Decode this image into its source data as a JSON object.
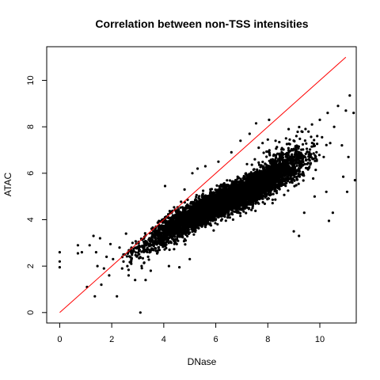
{
  "chart_data": {
    "type": "scatter",
    "title": "Correlation between non-TSS intensities",
    "xlabel": "DNase",
    "ylabel": "ATAC",
    "xlim": [
      -0.5,
      11.4
    ],
    "ylim": [
      -0.45,
      11.45
    ],
    "x_ticks": [
      "0",
      "2",
      "4",
      "6",
      "8",
      "10"
    ],
    "y_ticks": [
      "0",
      "2",
      "4",
      "6",
      "8",
      "10"
    ],
    "grid": false,
    "legend": "none",
    "point_color": "#000000",
    "reference_line": {
      "from": [
        0,
        0
      ],
      "to": [
        11,
        11
      ],
      "color": "#ff0000"
    },
    "points": [
      [
        0.0,
        2.6
      ],
      [
        0.0,
        2.2
      ],
      [
        0.0,
        1.95
      ],
      [
        0.7,
        2.9
      ],
      [
        0.7,
        2.55
      ],
      [
        0.85,
        2.6
      ],
      [
        1.05,
        1.1
      ],
      [
        1.15,
        2.9
      ],
      [
        1.3,
        3.3
      ],
      [
        1.35,
        0.7
      ],
      [
        1.4,
        2.6
      ],
      [
        1.45,
        2.0
      ],
      [
        1.55,
        3.2
      ],
      [
        1.6,
        1.2
      ],
      [
        1.7,
        1.9
      ],
      [
        1.8,
        2.4
      ],
      [
        1.9,
        1.6
      ],
      [
        2.05,
        2.3
      ],
      [
        2.2,
        0.7
      ],
      [
        2.3,
        2.8
      ],
      [
        2.4,
        1.9
      ],
      [
        2.45,
        2.5
      ],
      [
        2.55,
        3.4
      ],
      [
        2.65,
        1.6
      ],
      [
        2.75,
        2.1
      ],
      [
        2.8,
        3.0
      ],
      [
        2.9,
        1.4
      ],
      [
        3.05,
        2.7
      ],
      [
        3.1,
        0.0
      ],
      [
        3.15,
        2.0
      ],
      [
        3.3,
        1.4
      ],
      [
        3.4,
        2.4
      ],
      [
        3.5,
        1.8
      ],
      [
        3.6,
        3.0
      ],
      [
        3.7,
        3.7
      ],
      [
        3.8,
        2.8
      ],
      [
        4.2,
        2.0
      ],
      [
        4.6,
        1.95
      ],
      [
        4.8,
        5.3
      ],
      [
        5.0,
        2.3
      ],
      [
        5.3,
        6.2
      ],
      [
        5.6,
        6.3
      ],
      [
        6.1,
        6.5
      ],
      [
        7.3,
        7.7
      ],
      [
        7.5,
        6.6
      ],
      [
        7.65,
        7.1
      ],
      [
        7.8,
        7.3
      ],
      [
        8.0,
        7.45
      ],
      [
        8.3,
        7.4
      ],
      [
        8.5,
        6.8
      ],
      [
        8.7,
        7.5
      ],
      [
        9.0,
        3.5
      ],
      [
        9.1,
        7.6
      ],
      [
        9.3,
        7.8
      ],
      [
        9.4,
        4.3
      ],
      [
        9.6,
        6.9
      ],
      [
        9.7,
        8.1
      ],
      [
        9.8,
        5.0
      ],
      [
        9.9,
        7.6
      ],
      [
        10.0,
        8.3
      ],
      [
        10.15,
        6.7
      ],
      [
        10.25,
        5.2
      ],
      [
        10.3,
        8.6
      ],
      [
        10.35,
        3.95
      ],
      [
        10.5,
        4.3
      ],
      [
        10.55,
        8.0
      ],
      [
        10.7,
        8.9
      ],
      [
        10.85,
        7.2
      ],
      [
        10.9,
        5.85
      ],
      [
        11.0,
        8.7
      ],
      [
        11.1,
        6.7
      ],
      [
        11.15,
        9.35
      ],
      [
        11.3,
        8.6
      ],
      [
        11.35,
        5.7
      ],
      [
        8.05,
        8.3
      ],
      [
        7.55,
        8.15
      ],
      [
        6.95,
        7.4
      ],
      [
        6.6,
        6.9
      ],
      [
        10.4,
        7.3
      ],
      [
        9.5,
        7.05
      ],
      [
        8.8,
        7.9
      ],
      [
        11.05,
        5.2
      ],
      [
        9.2,
        3.3
      ],
      [
        2.6,
        2.0
      ],
      [
        3.25,
        2.15
      ],
      [
        1.95,
        2.95
      ],
      [
        4.05,
        5.45
      ],
      [
        5.1,
        6.0
      ]
    ],
    "cloud": [
      {
        "cx": 6.45,
        "cy": 4.85,
        "sx": 1.05,
        "sy": 0.56,
        "rho": 0.87,
        "n": 4200
      },
      {
        "cx": 7.5,
        "cy": 5.5,
        "sx": 0.8,
        "sy": 0.5,
        "rho": 0.8,
        "n": 1600
      },
      {
        "cx": 4.9,
        "cy": 3.9,
        "sx": 0.55,
        "sy": 0.4,
        "rho": 0.75,
        "n": 900
      },
      {
        "cx": 3.6,
        "cy": 3.05,
        "sx": 0.5,
        "sy": 0.38,
        "rho": 0.6,
        "n": 260
      },
      {
        "cx": 8.7,
        "cy": 6.45,
        "sx": 0.55,
        "sy": 0.5,
        "rho": 0.6,
        "n": 420
      }
    ]
  }
}
